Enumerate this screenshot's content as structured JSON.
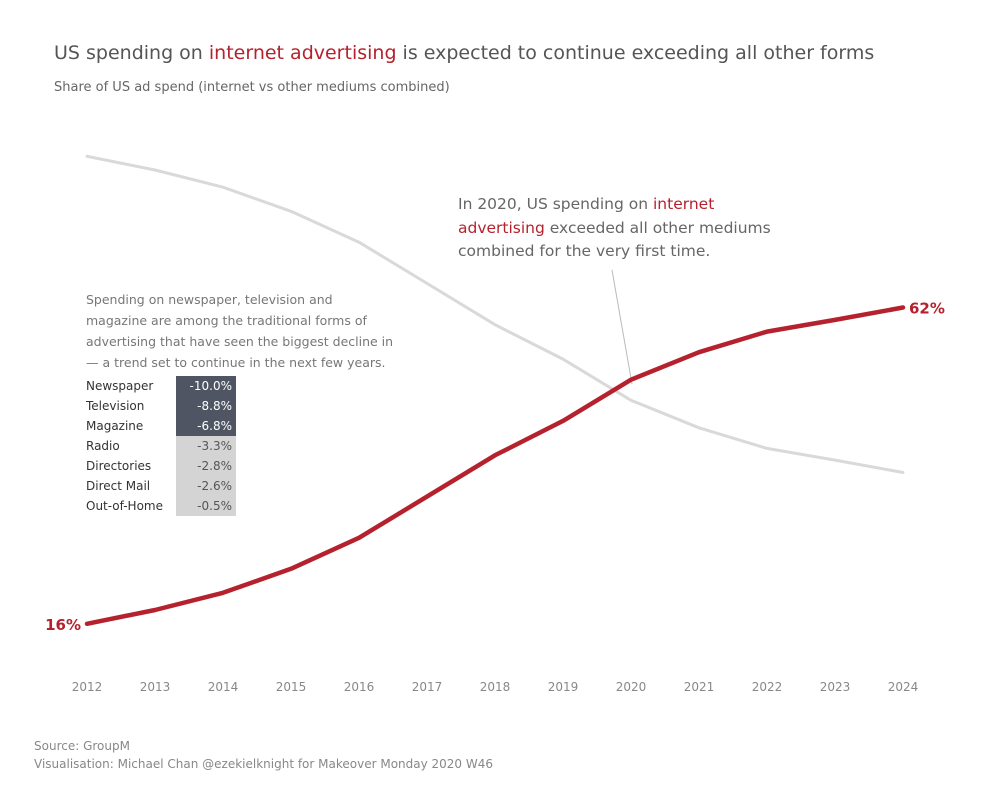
{
  "title": {
    "pre": "US spending on ",
    "highlight": "internet advertising",
    "post": " is expected to continue exceeding all other forms"
  },
  "subtitle": "Share of US ad spend (internet vs other mediums combined)",
  "annotation": {
    "pre": "In 2020, US spending on ",
    "highlight": "internet advertising",
    "post": " exceeded all other mediums combined for the very first time."
  },
  "decline_note": "Spending on newspaper, television and magazine are among the traditional forms of advertising that have seen the biggest decline in — a trend set to continue in the next few years.",
  "decline_table": [
    {
      "medium": "Newspaper",
      "value": "-10.0%"
    },
    {
      "medium": "Television",
      "value": "-8.8%"
    },
    {
      "medium": "Magazine",
      "value": "-6.8%"
    },
    {
      "medium": "Radio",
      "value": "-3.3%"
    },
    {
      "medium": "Directories",
      "value": "-2.8%"
    },
    {
      "medium": "Direct Mail",
      "value": "-2.6%"
    },
    {
      "medium": "Out-of-Home",
      "value": "-0.5%"
    }
  ],
  "source": {
    "line1": "Source: GroupM",
    "line2": "Visualisation: Michael Chan @ezekielknight for Makeover Monday 2020 W46"
  },
  "colors": {
    "internet": "#b5222e",
    "other": "#d9d9d9",
    "highlight": "#b5222e",
    "table_dark": "#4f5563",
    "table_light": "#d4d4d4"
  },
  "chart_data": {
    "type": "line",
    "x": [
      2012,
      2013,
      2014,
      2015,
      2016,
      2017,
      2018,
      2019,
      2020,
      2021,
      2022,
      2023,
      2024
    ],
    "ylim": [
      10,
      90
    ],
    "series": [
      {
        "name": "internet advertising",
        "color": "#b5222e",
        "values": [
          16,
          18,
          20.5,
          24,
          28.5,
          34.5,
          40.5,
          45.5,
          51.5,
          55.5,
          58.5,
          60.2,
          62
        ]
      },
      {
        "name": "other mediums combined",
        "color": "#d9d9d9",
        "values": [
          84,
          82,
          79.5,
          76,
          71.5,
          65.5,
          59.5,
          54.5,
          48.5,
          44.5,
          41.5,
          39.8,
          38
        ]
      }
    ],
    "end_labels": {
      "start": "16%",
      "end": "62%"
    },
    "grid": false
  }
}
